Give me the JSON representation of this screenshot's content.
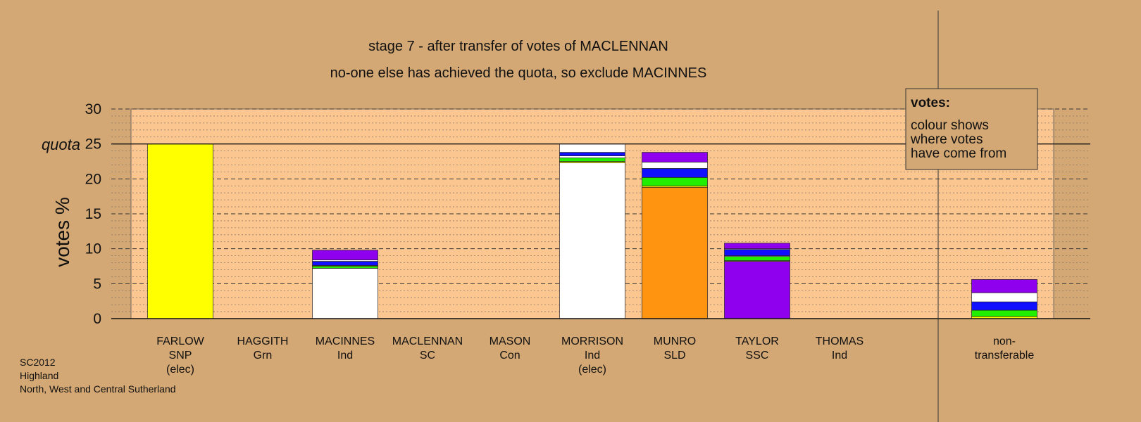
{
  "chart_data": {
    "type": "bar",
    "stacked": true,
    "title": "stage 7 - after transfer of votes of MACLENNAN",
    "subtitle": "no-one else has achieved the quota, so exclude MACINNES",
    "ylabel": "votes %",
    "ylim": [
      0,
      30
    ],
    "yticks": [
      "0",
      "5",
      "10",
      "15",
      "20",
      "25",
      "30"
    ],
    "quota": 25,
    "quota_label": "quota",
    "grid": true,
    "legend": {
      "title": "votes:",
      "lines": [
        "colour shows",
        "where votes",
        "have come from"
      ],
      "placement": "top-right"
    },
    "footer": [
      "SC2012",
      "Highland",
      "North, West and Central Sutherland"
    ],
    "colors": {
      "background": "#d4a874",
      "plot": "#fcc690",
      "SNP": "#ffff00",
      "Ind": "#ffffff",
      "SLD": "#ff9411",
      "SSC": "#8e00ee",
      "Grn": "#22ee00",
      "SC": "#0a0ad0",
      "Con": "#1010ff"
    },
    "categories": [
      {
        "name": "FARLOW",
        "party": "SNP",
        "note": "(elec)",
        "segments": [
          {
            "color": "#ffff00",
            "value": 25.0
          }
        ]
      },
      {
        "name": "HAGGITH",
        "party": "Grn",
        "note": "",
        "segments": []
      },
      {
        "name": "MACINNES",
        "party": "Ind",
        "note": "",
        "segments": [
          {
            "color": "#ffffff",
            "value": 7.2
          },
          {
            "color": "#22ee00",
            "value": 0.3
          },
          {
            "color": "#ffff00",
            "value": 0.1
          },
          {
            "color": "#1010ff",
            "value": 0.6
          },
          {
            "color": "#ffffff",
            "value": 0.2
          },
          {
            "color": "#8e00ee",
            "value": 1.4
          }
        ]
      },
      {
        "name": "MACLENNAN",
        "party": "SC",
        "note": "",
        "segments": []
      },
      {
        "name": "MASON",
        "party": "Con",
        "note": "",
        "segments": []
      },
      {
        "name": "MORRISON",
        "party": "Ind",
        "note": "(elec)",
        "segments": [
          {
            "color": "#ffffff",
            "value": 22.3
          },
          {
            "color": "#ffff00",
            "value": 0.2
          },
          {
            "color": "#22ee00",
            "value": 0.5
          },
          {
            "color": "#ffffff",
            "value": 0.3
          },
          {
            "color": "#1010ff",
            "value": 0.5
          },
          {
            "color": "#ffffff",
            "value": 1.2
          }
        ]
      },
      {
        "name": "MUNRO",
        "party": "SLD",
        "note": "",
        "segments": [
          {
            "color": "#ff9411",
            "value": 18.8
          },
          {
            "color": "#ffff00",
            "value": 0.2
          },
          {
            "color": "#22ee00",
            "value": 1.2
          },
          {
            "color": "#1010ff",
            "value": 1.3
          },
          {
            "color": "#ffffff",
            "value": 0.9
          },
          {
            "color": "#8e00ee",
            "value": 1.4
          }
        ]
      },
      {
        "name": "TAYLOR",
        "party": "SSC",
        "note": "",
        "segments": [
          {
            "color": "#8e00ee",
            "value": 8.2
          },
          {
            "color": "#ffff00",
            "value": 0.1
          },
          {
            "color": "#22ee00",
            "value": 0.6
          },
          {
            "color": "#ffffff",
            "value": 0.1
          },
          {
            "color": "#1010ff",
            "value": 0.9
          },
          {
            "color": "#ffffff",
            "value": 0.1
          },
          {
            "color": "#8e00ee",
            "value": 0.8
          }
        ]
      },
      {
        "name": "THOMAS",
        "party": "Ind",
        "note": "",
        "segments": []
      },
      {
        "name": "non-",
        "party": "transferable",
        "note": "",
        "segments": [
          {
            "color": "#ffff00",
            "value": 0.3
          },
          {
            "color": "#22ee00",
            "value": 0.9
          },
          {
            "color": "#1010ff",
            "value": 1.2
          },
          {
            "color": "#ffffff",
            "value": 1.3
          },
          {
            "color": "#8e00ee",
            "value": 1.9
          }
        ]
      }
    ]
  }
}
